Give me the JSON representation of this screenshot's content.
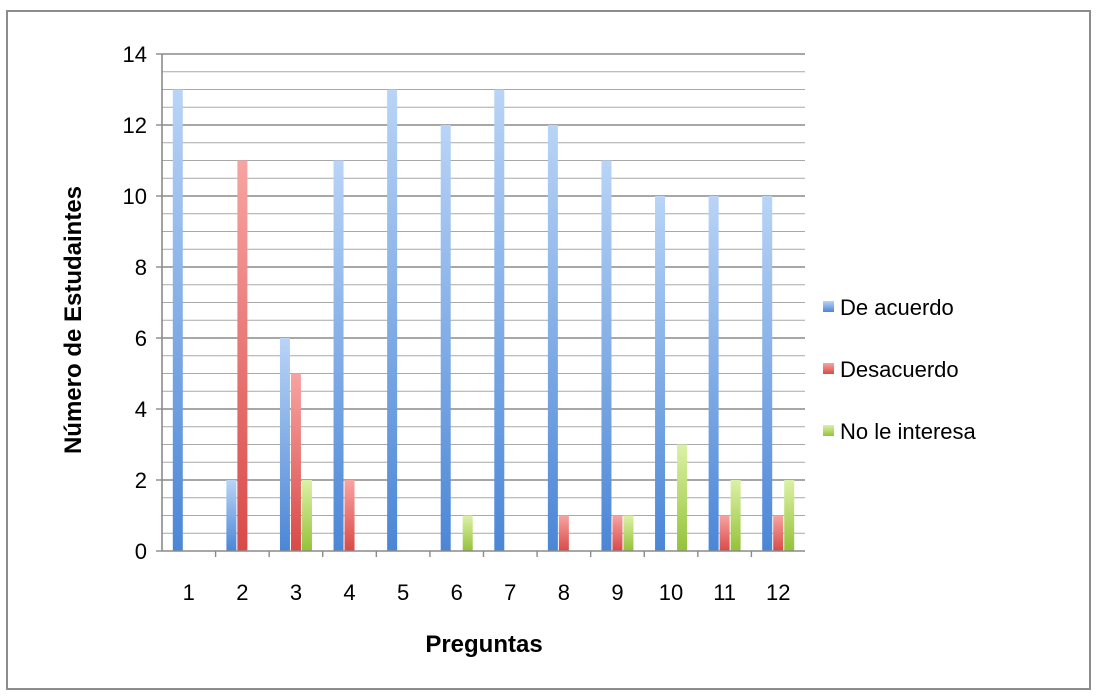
{
  "chart_data": {
    "type": "bar",
    "title": "",
    "xlabel": "Preguntas",
    "ylabel": "Número de Estudaintes",
    "categories": [
      "1",
      "2",
      "3",
      "4",
      "5",
      "6",
      "7",
      "8",
      "9",
      "10",
      "11",
      "12"
    ],
    "yticks": [
      "0",
      "2",
      "4",
      "6",
      "8",
      "10",
      "12",
      "14"
    ],
    "ylim": [
      0,
      14
    ],
    "grid": true,
    "legend_position": "right",
    "series": [
      {
        "name": "De acuerdo",
        "color": "#5b93dd",
        "values": [
          13,
          2,
          6,
          11,
          13,
          12,
          13,
          12,
          11,
          10,
          10,
          10
        ]
      },
      {
        "name": "Desacuerdo",
        "color": "#e05a58",
        "values": [
          0,
          11,
          5,
          2,
          0,
          0,
          0,
          1,
          1,
          0,
          1,
          1
        ]
      },
      {
        "name": "No le interesa",
        "color": "#a6cf4a",
        "values": [
          0,
          0,
          2,
          0,
          0,
          1,
          0,
          0,
          1,
          3,
          2,
          2
        ]
      }
    ]
  }
}
